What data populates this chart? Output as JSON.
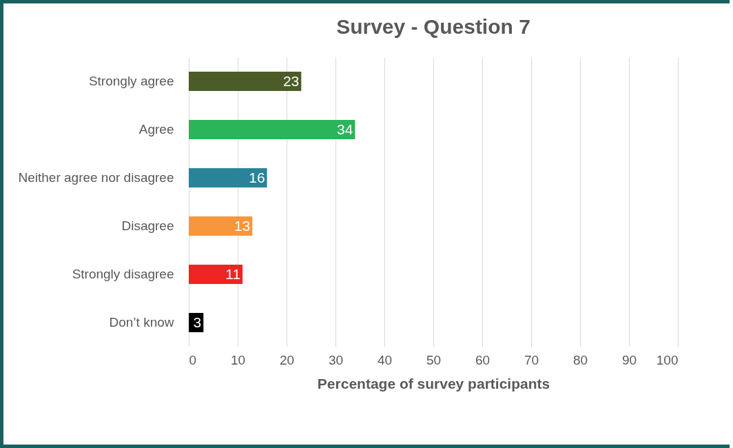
{
  "chart_data": {
    "type": "bar",
    "orientation": "horizontal",
    "title": "Survey - Question 7",
    "xlabel": "Percentage of survey participants",
    "categories": [
      "Strongly agree",
      "Agree",
      "Neither agree nor disagree",
      "Disagree",
      "Strongly disagree",
      "Don’t know"
    ],
    "values": [
      23,
      34,
      16,
      13,
      11,
      3
    ],
    "colors": [
      "#4b5c29",
      "#2bb45a",
      "#2a8499",
      "#f7963c",
      "#ee2424",
      "#000000"
    ],
    "xlim": [
      0,
      100
    ],
    "xticks": [
      0,
      10,
      20,
      30,
      40,
      50,
      60,
      70,
      80,
      90,
      100
    ],
    "grid": "x",
    "data_labels": true
  }
}
